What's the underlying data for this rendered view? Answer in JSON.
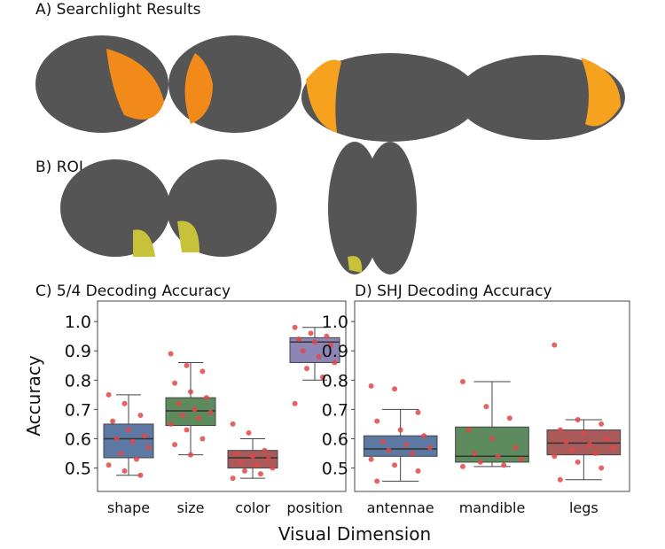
{
  "panel_a_title": "A) Searchlight Results",
  "panel_b_title": "B) ROI",
  "shared_xlabel": "Visual Dimension",
  "chart_data": [
    {
      "type": "box",
      "title": "C) 5/4 Decoding Accuracy",
      "ylabel": "Accuracy",
      "ylim": [
        0.42,
        1.07
      ],
      "yticks": [
        0.5,
        0.6,
        0.7,
        0.8,
        0.9,
        {
          "value": 1.0,
          "label": "1.0"
        }
      ],
      "categories": [
        "shape",
        "size",
        "color",
        "position"
      ],
      "boxes": [
        {
          "color": "#5b79a3",
          "min": 0.475,
          "q1": 0.535,
          "median": 0.6,
          "q3": 0.65,
          "max": 0.75,
          "points": [
            0.75,
            0.72,
            0.68,
            0.66,
            0.63,
            0.61,
            0.6,
            0.59,
            0.57,
            0.55,
            0.53,
            0.51,
            0.49,
            0.475
          ]
        },
        {
          "color": "#5e8b5d",
          "min": 0.545,
          "q1": 0.645,
          "median": 0.695,
          "q3": 0.74,
          "max": 0.86,
          "points": [
            0.89,
            0.85,
            0.83,
            0.79,
            0.76,
            0.74,
            0.72,
            0.7,
            0.69,
            0.68,
            0.67,
            0.65,
            0.63,
            0.6,
            0.58,
            0.545
          ]
        },
        {
          "color": "#a95a5a",
          "min": 0.465,
          "q1": 0.5,
          "median": 0.535,
          "q3": 0.56,
          "max": 0.6,
          "points": [
            0.65,
            0.62,
            0.56,
            0.55,
            0.54,
            0.53,
            0.52,
            0.51,
            0.5,
            0.49,
            0.48,
            0.465
          ]
        },
        {
          "color": "#8b86b6",
          "min": 0.8,
          "q1": 0.86,
          "median": 0.93,
          "q3": 0.945,
          "max": 0.98,
          "points": [
            0.98,
            0.96,
            0.95,
            0.94,
            0.93,
            0.92,
            0.9,
            0.88,
            0.86,
            0.84,
            0.81,
            0.72
          ]
        }
      ]
    },
    {
      "type": "box",
      "title": "D) SHJ Decoding Accuracy",
      "ylim": [
        0.42,
        1.07
      ],
      "yticks": [
        0.5,
        0.6,
        0.7,
        0.8,
        0.9,
        {
          "value": 1.0,
          "label": "1.0"
        }
      ],
      "categories": [
        "antennae",
        "mandible",
        "legs"
      ],
      "boxes": [
        {
          "color": "#5b79a3",
          "min": 0.455,
          "q1": 0.54,
          "median": 0.565,
          "q3": 0.61,
          "max": 0.7,
          "points": [
            0.78,
            0.77,
            0.69,
            0.66,
            0.63,
            0.61,
            0.59,
            0.58,
            0.57,
            0.56,
            0.55,
            0.53,
            0.51,
            0.49,
            0.455
          ]
        },
        {
          "color": "#5e8b5d",
          "min": 0.505,
          "q1": 0.52,
          "median": 0.54,
          "q3": 0.64,
          "max": 0.795,
          "points": [
            0.795,
            0.71,
            0.67,
            0.63,
            0.6,
            0.57,
            0.55,
            0.54,
            0.53,
            0.52,
            0.51,
            0.505
          ]
        },
        {
          "color": "#a95a5a",
          "min": 0.46,
          "q1": 0.545,
          "median": 0.585,
          "q3": 0.63,
          "max": 0.665,
          "points": [
            0.92,
            0.665,
            0.65,
            0.63,
            0.62,
            0.6,
            0.59,
            0.58,
            0.57,
            0.56,
            0.55,
            0.54,
            0.52,
            0.5,
            0.46
          ]
        }
      ]
    }
  ]
}
